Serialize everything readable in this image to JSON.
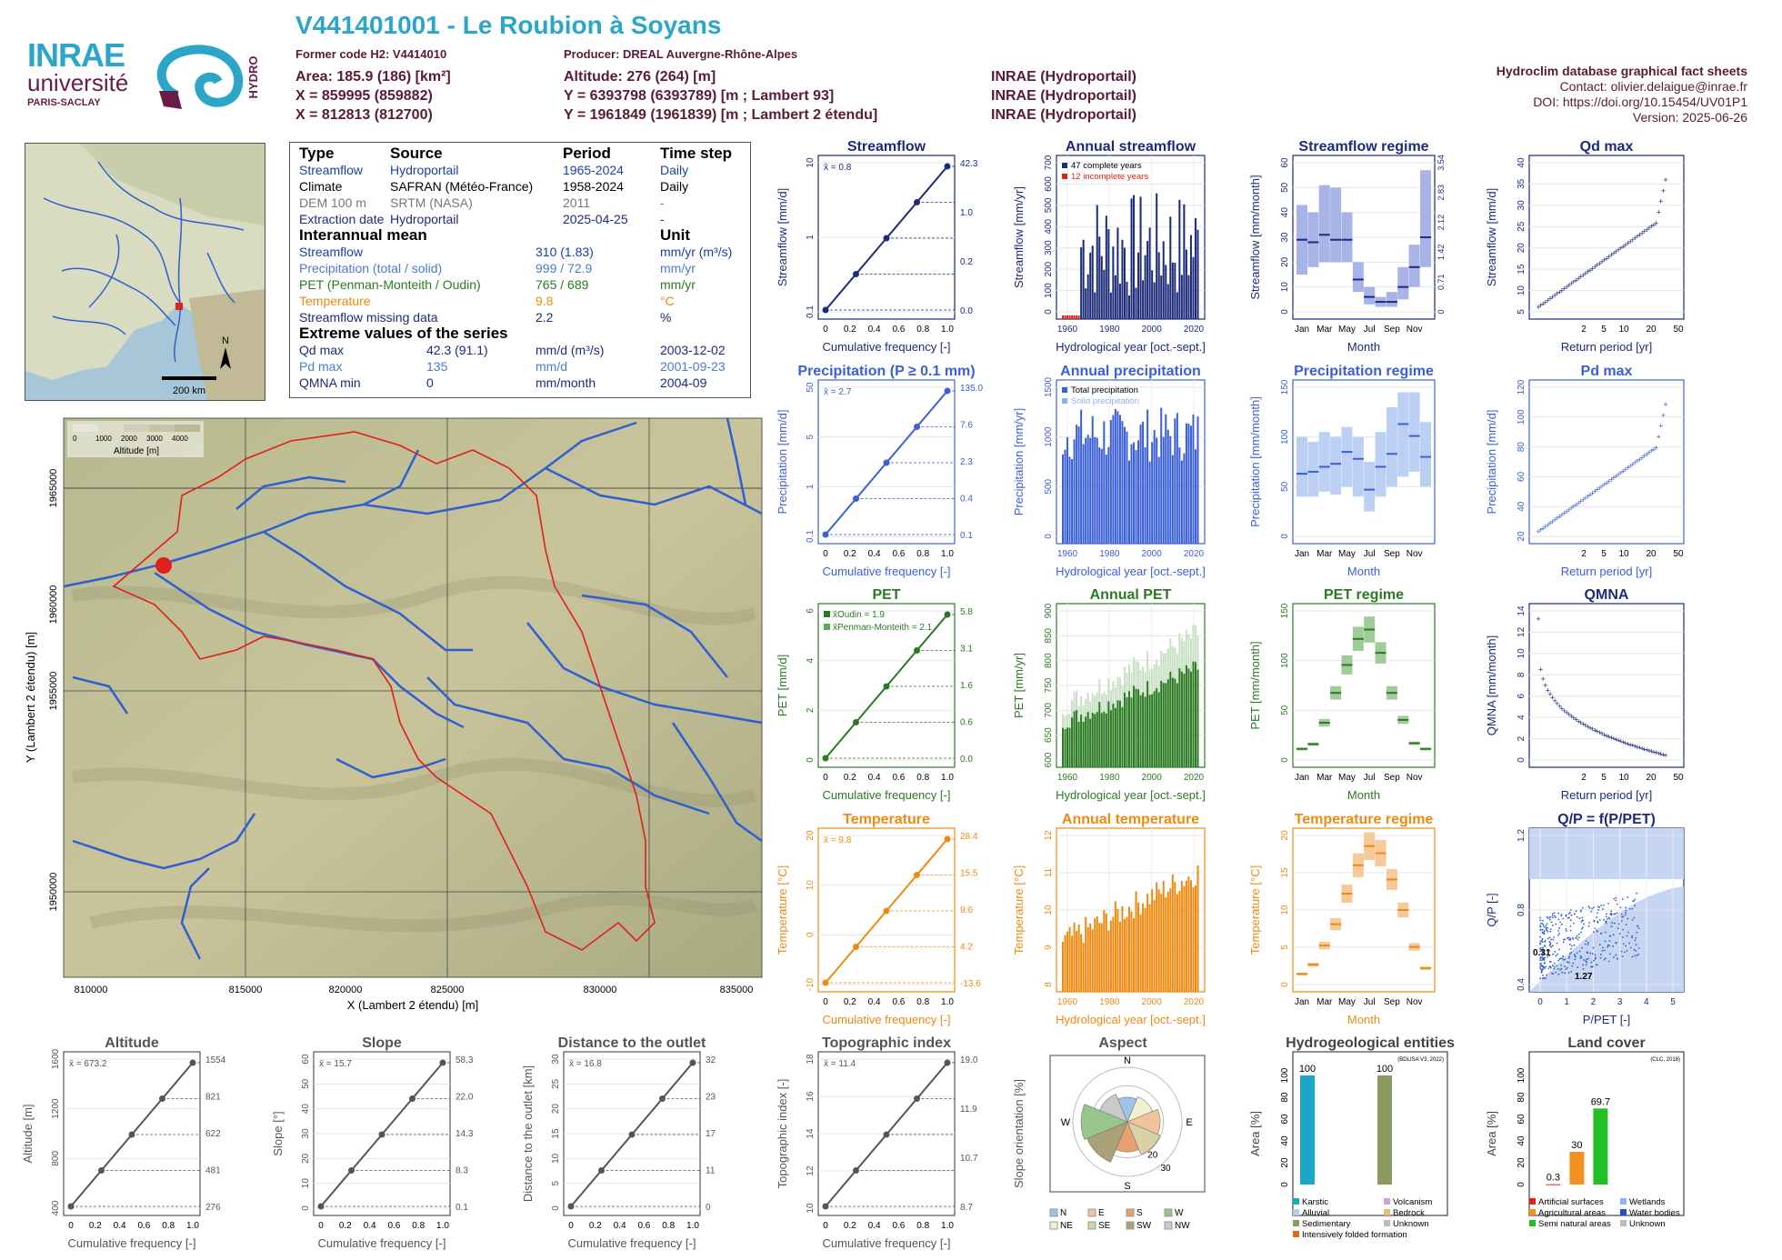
{
  "header": {
    "title": "V441401001 - Le Roubion à Soyans",
    "former_code": "Former code H2: V4414010",
    "producer": "Producer: DREAL Auvergne-Rhône-Alpes",
    "area": "Area: 185.9 (186) [km²]",
    "x93": "X = 859995 (859882)",
    "x2e": "X = 812813 (812700)",
    "altitude": "Altitude: 276 (264) [m]",
    "y93": "Y = 6393798 (6393789) [m ; Lambert 93]",
    "y2e": "Y = 1961849 (1961839) [m ; Lambert 2 étendu]",
    "src1": "INRAE (Hydroportail)",
    "src2": "INRAE (Hydroportail)",
    "src3": "INRAE (Hydroportail)",
    "db_title": "Hydroclim database graphical fact sheets",
    "contact": "Contact: olivier.delaigue@inrae.fr",
    "doi": "DOI: https://doi.org/10.15454/UV01P1",
    "version": "Version: 2025-06-26"
  },
  "logos": {
    "inrae": "INRAE",
    "universite": "université",
    "paris_saclay": "PARIS-SACLAY",
    "hydro": "HYDRO"
  },
  "colors": {
    "teal": "#2ba6c9",
    "navy": "#1c2b7a",
    "precip": "#3b5fd6",
    "pet": "#2a7a23",
    "temp": "#ee8a10",
    "maroon": "#5a1a3a"
  },
  "map_small": {
    "scale": "200 km",
    "north": "N"
  },
  "info_table": {
    "headers": [
      "Type",
      "Source",
      "Period",
      "Time step"
    ],
    "rows": [
      [
        "Streamflow",
        "Hydroportail",
        "1965-2024",
        "Daily"
      ],
      [
        "Climate",
        "SAFRAN (Météo-France)",
        "1958-2024",
        "Daily"
      ],
      [
        "DEM 100 m",
        "SRTM (NASA)",
        "2011",
        "-"
      ],
      [
        "Extraction date",
        "Hydroportail",
        "2025-04-25",
        "-"
      ]
    ],
    "mean_title": "Interannual mean",
    "unit_title": "Unit",
    "means": [
      [
        "Streamflow",
        "310 (1.83)",
        "mm/yr (m³/s)"
      ],
      [
        "Precipitation (total / solid)",
        "999 / 72.9",
        "mm/yr"
      ],
      [
        "PET (Penman-Monteith / Oudin)",
        "765 / 689",
        "mm/yr"
      ],
      [
        "Temperature",
        "9.8",
        "°C"
      ],
      [
        "Streamflow missing data",
        "2.2",
        "%"
      ]
    ],
    "extreme_title": "Extreme values of the series",
    "extremes": [
      [
        "Qd max",
        "42.3 (91.1)",
        "mm/d (m³/s)",
        "2003-12-02"
      ],
      [
        "Pd max",
        "135",
        "mm/d",
        "2001-09-23"
      ],
      [
        "QMNA min",
        "0",
        "mm/month",
        "2004-09"
      ]
    ]
  },
  "catchment_map": {
    "legend_ticks": [
      "0",
      "1000",
      "2000",
      "3000",
      "4000"
    ],
    "legend_title": "Altitude [m]",
    "xlabel": "X (Lambert 2 étendu) [m]",
    "ylabel": "Y (Lambert 2 étendu) [m]",
    "xticks": [
      "810000",
      "815000",
      "820000",
      "825000",
      "830000",
      "835000"
    ],
    "yticks": [
      "1950000",
      "1955000",
      "1960000",
      "1965000"
    ]
  },
  "chart_data": [
    {
      "id": "streamflow_fdc",
      "type": "line",
      "title": "Streamflow",
      "xlabel": "Cumulative frequency [-]",
      "ylabel": "Streamflow [mm/d]",
      "mean_label": "x̄ = 0.8",
      "x": [
        0,
        0.25,
        0.5,
        0.75,
        1
      ],
      "y": [
        0.0,
        0.2,
        0.5,
        1.0,
        42.3
      ],
      "right_ticks": [
        "42.3",
        "1.0",
        "0.2",
        "0.0"
      ],
      "yticks": [
        "0.1",
        "1",
        "10"
      ]
    },
    {
      "id": "annual_streamflow",
      "type": "bar",
      "title": "Annual streamflow",
      "xlabel": "Hydrological year [oct.-sept.]",
      "ylabel": "Streamflow [mm/yr]",
      "legend": [
        "47 complete years",
        "12 incomplete years"
      ],
      "yticks": [
        "0",
        "100",
        "200",
        "300",
        "400",
        "500",
        "600",
        "700"
      ],
      "xticks": [
        "1960",
        "1980",
        "2000",
        "2020"
      ]
    },
    {
      "id": "streamflow_regime",
      "type": "bar",
      "title": "Streamflow regime",
      "xlabel": "Month",
      "ylabel": "Streamflow [mm/month]",
      "months": [
        "Jan",
        "Feb",
        "Mar",
        "Apr",
        "May",
        "Jun",
        "Jul",
        "Aug",
        "Sep",
        "Oct",
        "Nov",
        "Dec"
      ],
      "median": [
        29,
        28,
        31,
        29,
        29,
        13,
        6,
        4,
        4,
        10,
        18,
        30
      ],
      "q_low": [
        15,
        18,
        20,
        20,
        20,
        8,
        3,
        2,
        2,
        5,
        10,
        18
      ],
      "q_high": [
        43,
        40,
        51,
        50,
        40,
        20,
        10,
        6,
        8,
        18,
        27,
        57
      ],
      "yticks": [
        "0",
        "10",
        "20",
        "30",
        "40",
        "50",
        "60"
      ],
      "right_ticks": [
        "0",
        "0.71",
        "1.42",
        "2.12",
        "2.83",
        "3.54"
      ],
      "xticks": [
        "Jan",
        "Mar",
        "May",
        "Jul",
        "Sep",
        "Nov"
      ]
    },
    {
      "id": "qd_max",
      "type": "scatter",
      "title": "Qd max",
      "xlabel": "Return period [yr]",
      "ylabel": "Streamflow [mm/d]",
      "yticks": [
        "5",
        "10",
        "15",
        "20",
        "25",
        "30",
        "35",
        "40"
      ],
      "xticks": [
        "2",
        "5",
        "10",
        "20",
        "50"
      ]
    },
    {
      "id": "precip_fdc",
      "type": "line",
      "title": "Precipitation (P ≥ 0.1 mm)",
      "xlabel": "Cumulative frequency [-]",
      "ylabel": "Precipitation [mm/d]",
      "mean_label": "x̄ = 2.7",
      "x": [
        0,
        0.25,
        0.5,
        0.75,
        1
      ],
      "y": [
        0.1,
        0.4,
        2.3,
        7.6,
        135.0
      ],
      "right_ticks": [
        "135.0",
        "7.6",
        "2.3",
        "0.4",
        "0.1"
      ],
      "yticks": [
        "0.1",
        "1",
        "5",
        "50"
      ]
    },
    {
      "id": "annual_precip",
      "type": "bar",
      "title": "Annual precipitation",
      "xlabel": "Hydrological year [oct.-sept.]",
      "ylabel": "Precipitation [mm/yr]",
      "legend": [
        "Total precipitation",
        "Solid precipitation"
      ],
      "yticks": [
        "0",
        "500",
        "1000",
        "1500"
      ],
      "xticks": [
        "1960",
        "1980",
        "2000",
        "2020"
      ]
    },
    {
      "id": "precip_regime",
      "type": "bar",
      "title": "Precipitation regime",
      "xlabel": "Month",
      "ylabel": "Precipitation [mm/month]",
      "median": [
        63,
        65,
        70,
        73,
        85,
        78,
        47,
        70,
        83,
        113,
        101,
        80
      ],
      "q_low": [
        40,
        40,
        45,
        42,
        50,
        40,
        25,
        40,
        50,
        60,
        65,
        50
      ],
      "q_high": [
        100,
        95,
        105,
        100,
        110,
        100,
        75,
        105,
        130,
        145,
        145,
        115
      ],
      "yticks": [
        "0",
        "50",
        "100",
        "150"
      ],
      "xticks": [
        "Jan",
        "Mar",
        "May",
        "Jul",
        "Sep",
        "Nov"
      ]
    },
    {
      "id": "pd_max",
      "type": "scatter",
      "title": "Pd max",
      "xlabel": "Return period [yr]",
      "ylabel": "Precipitation [mm/d]",
      "yticks": [
        "20",
        "40",
        "60",
        "80",
        "100",
        "120"
      ],
      "xticks": [
        "2",
        "5",
        "10",
        "20",
        "50"
      ]
    },
    {
      "id": "pet_fdc",
      "type": "line",
      "title": "PET",
      "xlabel": "Cumulative frequency [-]",
      "ylabel": "PET [mm/d]",
      "legend": [
        "x̄Oudin = 1.9",
        "x̄Penman-Monteith = 2.1"
      ],
      "x": [
        0,
        0.25,
        0.5,
        0.75,
        1
      ],
      "y": [
        0.0,
        0.6,
        1.6,
        3.1,
        5.8
      ],
      "right_ticks": [
        "5.8",
        "3.1",
        "1.6",
        "0.6",
        "0.0"
      ],
      "yticks": [
        "0",
        "2",
        "4",
        "6"
      ]
    },
    {
      "id": "annual_pet",
      "type": "bar",
      "title": "Annual PET",
      "xlabel": "Hydrological year [oct.-sept.]",
      "ylabel": "PET [mm/yr]",
      "yticks": [
        "600",
        "650",
        "700",
        "750",
        "800",
        "850",
        "900"
      ],
      "xticks": [
        "1960",
        "1980",
        "2000",
        "2020"
      ]
    },
    {
      "id": "pet_regime",
      "type": "bar",
      "title": "PET regime",
      "xlabel": "Month",
      "ylabel": "PET [mm/month]",
      "median": [
        12,
        17,
        40,
        72,
        102,
        130,
        140,
        115,
        72,
        43,
        18,
        12
      ],
      "yticks": [
        "0",
        "50",
        "100",
        "150"
      ],
      "xticks": [
        "Jan",
        "Mar",
        "May",
        "Jul",
        "Sep",
        "Nov"
      ]
    },
    {
      "id": "qmna",
      "type": "scatter",
      "title": "QMNA",
      "xlabel": "Return period [yr]",
      "ylabel": "QMNA [mm/month]",
      "yticks": [
        "0",
        "2",
        "4",
        "6",
        "8",
        "10",
        "12",
        "14"
      ],
      "xticks": [
        "2",
        "5",
        "10",
        "20",
        "50"
      ]
    },
    {
      "id": "temp_fdc",
      "type": "line",
      "title": "Temperature",
      "xlabel": "Cumulative frequency [-]",
      "ylabel": "Temperature [°C]",
      "mean_label": "x̄ = 9.8",
      "x": [
        0,
        0.25,
        0.5,
        0.75,
        1
      ],
      "y": [
        -13.6,
        4.2,
        9.6,
        15.5,
        28.4
      ],
      "right_ticks": [
        "28.4",
        "15.5",
        "9.6",
        "4.2",
        "-13.6"
      ],
      "yticks": [
        "-10",
        "0",
        "10",
        "20"
      ]
    },
    {
      "id": "annual_temp",
      "type": "bar",
      "title": "Annual temperature",
      "xlabel": "Hydrological year [oct.-sept.]",
      "ylabel": "Temperature [°C]",
      "yticks": [
        "8",
        "9",
        "10",
        "11",
        "12"
      ],
      "xticks": [
        "1960",
        "1980",
        "2000",
        "2020"
      ]
    },
    {
      "id": "temp_regime",
      "type": "bar",
      "title": "Temperature regime",
      "xlabel": "Month",
      "ylabel": "Temperature [°C]",
      "median": [
        1.5,
        2.8,
        5.5,
        8.5,
        12.8,
        16.8,
        19.5,
        18.5,
        14.8,
        10.5,
        5.3,
        2.3
      ],
      "yticks": [
        "0",
        "5",
        "10",
        "15",
        "20"
      ],
      "xticks": [
        "Jan",
        "Mar",
        "May",
        "Jul",
        "Sep",
        "Nov"
      ]
    },
    {
      "id": "qp_ppet",
      "type": "scatter",
      "title": "Q/P = f(P/PET)",
      "xlabel": "P/PET [-]",
      "ylabel": "Q/P [-]",
      "labels": [
        "0.31",
        "1.27"
      ],
      "yticks": [
        "0.4",
        "0.8",
        "1.2"
      ],
      "xticks": [
        "0",
        "1",
        "2",
        "3",
        "4",
        "5"
      ]
    },
    {
      "id": "altitude",
      "type": "line",
      "title": "Altitude",
      "xlabel": "Cumulative frequency [-]",
      "ylabel": "Altitude [m]",
      "mean_label": "x̄ = 673.2",
      "x": [
        0,
        0.25,
        0.5,
        0.75,
        1
      ],
      "y": [
        276,
        481,
        622,
        821,
        1554
      ],
      "right_ticks": [
        "1554",
        "821",
        "622",
        "481",
        "276"
      ],
      "yticks": [
        "400",
        "800",
        "1200",
        "1600"
      ]
    },
    {
      "id": "slope",
      "type": "line",
      "title": "Slope",
      "xlabel": "Cumulative frequency [-]",
      "ylabel": "Slope [°]",
      "mean_label": "x̄ = 15.7",
      "x": [
        0,
        0.25,
        0.5,
        0.75,
        1
      ],
      "y": [
        0.1,
        8.3,
        14.3,
        22.0,
        58.3
      ],
      "right_ticks": [
        "58.3",
        "22.0",
        "14.3",
        "8.3",
        "0.1"
      ],
      "yticks": [
        "0",
        "10",
        "20",
        "30",
        "40",
        "50",
        "60"
      ]
    },
    {
      "id": "distance_outlet",
      "type": "line",
      "title": "Distance to the outlet",
      "xlabel": "Cumulative frequency [-]",
      "ylabel": "Distance to the outlet [km]",
      "mean_label": "x̄ = 16.8",
      "x": [
        0,
        0.25,
        0.5,
        0.75,
        1
      ],
      "y": [
        0,
        11,
        17,
        23,
        32
      ],
      "right_ticks": [
        "32",
        "23",
        "17",
        "11",
        "0"
      ],
      "yticks": [
        "0",
        "5",
        "10",
        "15",
        "20",
        "25",
        "30"
      ]
    },
    {
      "id": "topo_index",
      "type": "line",
      "title": "Topographic index",
      "xlabel": "Cumulative frequency [-]",
      "ylabel": "Topographic index [-]",
      "mean_label": "x̄ = 11.4",
      "x": [
        0,
        0.25,
        0.5,
        0.75,
        1
      ],
      "y": [
        8.7,
        10.7,
        11.0,
        11.9,
        19.0
      ],
      "right_ticks": [
        "19.0",
        "11.9",
        "10.7",
        "8.7"
      ],
      "yticks": [
        "10",
        "12",
        "14",
        "16",
        "18"
      ]
    },
    {
      "id": "aspect",
      "type": "pie",
      "title": "Aspect",
      "ylabel": "Slope orientation [%]",
      "directions": [
        "N",
        "NE",
        "E",
        "SE",
        "S",
        "SW",
        "W",
        "NW"
      ],
      "values": [
        9,
        10,
        12,
        13,
        11,
        16,
        17,
        11
      ],
      "rings": [
        "10",
        "20",
        "30"
      ],
      "legend": [
        "N",
        "E",
        "S",
        "W",
        "NE",
        "SE",
        "SW",
        "NW"
      ]
    },
    {
      "id": "hydrogeology",
      "type": "bar",
      "title": "Hydrogeological entities",
      "ylabel": "Area [%]",
      "source": "(BDLISA V3, 2022)",
      "values": [
        100,
        100
      ],
      "value_labels": [
        "100",
        "100"
      ],
      "legend": [
        "Karstic",
        "Volcanism",
        "Alluvial",
        "Bedrock",
        "Sedimentary",
        "Unknown",
        "Intensively folded formation"
      ],
      "yticks": [
        "0",
        "20",
        "40",
        "60",
        "80",
        "100"
      ]
    },
    {
      "id": "land_cover",
      "type": "bar",
      "title": "Land cover",
      "ylabel": "Area [%]",
      "source": "(CLC, 2018)",
      "values": [
        0.3,
        30,
        69.7
      ],
      "value_labels": [
        "0.3",
        "30",
        "69.7"
      ],
      "legend": [
        "Artificial surfaces",
        "Wetlands",
        "Agricultural areas",
        "Water bodies",
        "Semi natural areas",
        "Unknown"
      ],
      "yticks": [
        "0",
        "20",
        "40",
        "60",
        "80",
        "100"
      ]
    }
  ]
}
